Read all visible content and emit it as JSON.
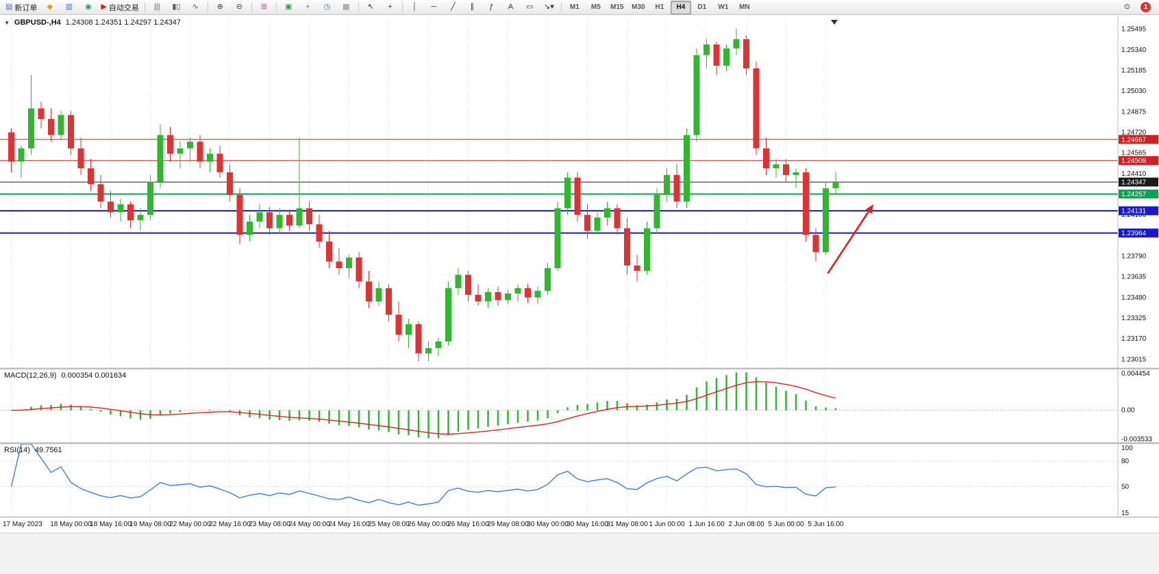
{
  "toolbar": {
    "groups": [
      [
        {
          "name": "new-order-button",
          "glyph": "▤",
          "glyph_color": "#3a6fd8",
          "label": "新订单"
        },
        {
          "name": "chart-profiles-button",
          "glyph": "◆",
          "glyph_color": "#d9a520"
        },
        {
          "name": "market-watch-button",
          "glyph": "▥",
          "glyph_color": "#3a6fd8"
        },
        {
          "name": "navigator-button",
          "glyph": "◉",
          "glyph_color": "#2e9e4f"
        },
        {
          "name": "autotrade-button",
          "glyph": "▶",
          "glyph_color": "#cc2222",
          "label": "自动交易"
        }
      ],
      [
        {
          "name": "bar-chart-button",
          "glyph": "|||",
          "glyph_color": "#555"
        },
        {
          "name": "candlestick-chart-button",
          "glyph": "▮▯",
          "glyph_color": "#555"
        },
        {
          "name": "line-chart-button",
          "glyph": "∿",
          "glyph_color": "#555"
        }
      ],
      [
        {
          "name": "zoom-in-button",
          "glyph": "⊕",
          "glyph_color": "#444"
        },
        {
          "name": "zoom-out-button",
          "glyph": "⊖",
          "glyph_color": "#444"
        }
      ],
      [
        {
          "name": "tile-windows-button",
          "glyph": "⊞",
          "glyph_color": "#b05c9e"
        }
      ],
      [
        {
          "name": "indicators-button",
          "glyph": "▣",
          "glyph_color": "#2e9e4f"
        },
        {
          "name": "add-indicator-button",
          "glyph": "+",
          "glyph_color": "#2e9e4f"
        },
        {
          "name": "periods-button",
          "glyph": "◷",
          "glyph_color": "#3a6fd8"
        },
        {
          "name": "templates-button",
          "glyph": "▦",
          "glyph_color": "#888888"
        }
      ],
      [
        {
          "name": "cursor-button",
          "glyph": "↖",
          "glyph_color": "#333"
        },
        {
          "name": "crosshair-button",
          "glyph": "+",
          "glyph_color": "#333"
        }
      ],
      [
        {
          "name": "vertical-line-button",
          "glyph": "│",
          "glyph_color": "#333"
        },
        {
          "name": "horizontal-line-button",
          "glyph": "─",
          "glyph_color": "#333"
        },
        {
          "name": "trendline-button",
          "glyph": "╱",
          "glyph_color": "#333"
        },
        {
          "name": "channel-button",
          "glyph": "∥",
          "glyph_color": "#333"
        },
        {
          "name": "fibonacci-button",
          "glyph": "ƒ",
          "glyph_color": "#333"
        },
        {
          "name": "text-button",
          "glyph": "A",
          "glyph_color": "#333"
        },
        {
          "name": "label-button",
          "glyph": "▭",
          "glyph_color": "#333"
        },
        {
          "name": "arrows-button",
          "glyph": "↘▾",
          "glyph_color": "#333"
        }
      ]
    ],
    "timeframes": [
      "M1",
      "M5",
      "M15",
      "M30",
      "H1",
      "H4",
      "D1",
      "W1",
      "MN"
    ],
    "active_timeframe": "H4",
    "right": {
      "search_glyph": "⊙",
      "badge": "1"
    }
  },
  "icons": {
    "collapse": "▼"
  },
  "chart_data": [
    {
      "type": "candlestick",
      "title": "GBPUSD-,H4",
      "ohlc": "1.24308 1.24351 1.24297 1.24347",
      "ylim": [
        1.2295,
        1.2557
      ],
      "y_ticks": [
        "1.25495",
        "1.25340",
        "1.25185",
        "1.25030",
        "1.24875",
        "1.24720",
        "1.24565",
        "1.24410",
        "1.24100",
        "1.23790",
        "1.23635",
        "1.23480",
        "1.23325",
        "1.23170",
        "1.23015"
      ],
      "up_color": "#2db82d",
      "down_color": "#e03232",
      "price_lines": [
        {
          "price": 1.24667,
          "label": "1.24667",
          "color": "#d21f1f",
          "width": 1
        },
        {
          "price": 1.24508,
          "label": "1.24508",
          "color": "#d21f1f",
          "width": 1
        },
        {
          "price": 1.24347,
          "label": "1.24347",
          "color": "#1a1a1a",
          "width": 1
        },
        {
          "price": 1.24257,
          "label": "1.24257",
          "color": "#00a651",
          "width": 2
        },
        {
          "price": 1.24131,
          "label": "1.24131",
          "color": "#1717cf",
          "width": 2
        },
        {
          "price": 1.23964,
          "label": "1.23964",
          "color": "#1717cf",
          "width": 2
        }
      ],
      "candles": [
        [
          1.2472,
          1.2475,
          1.2442,
          1.245
        ],
        [
          1.245,
          1.2462,
          1.2438,
          1.246
        ],
        [
          1.246,
          1.2515,
          1.2455,
          1.249
        ],
        [
          1.249,
          1.2495,
          1.2475,
          1.2482
        ],
        [
          1.2482,
          1.249,
          1.2465,
          1.247
        ],
        [
          1.247,
          1.2488,
          1.2466,
          1.2485
        ],
        [
          1.2485,
          1.2488,
          1.2455,
          1.246
        ],
        [
          1.246,
          1.2468,
          1.244,
          1.2445
        ],
        [
          1.2445,
          1.2452,
          1.2428,
          1.2433
        ],
        [
          1.2433,
          1.244,
          1.2415,
          1.242
        ],
        [
          1.242,
          1.2428,
          1.2408,
          1.2412
        ],
        [
          1.2412,
          1.2422,
          1.2405,
          1.2418
        ],
        [
          1.2418,
          1.242,
          1.24,
          1.2406
        ],
        [
          1.2406,
          1.2415,
          1.2398,
          1.241
        ],
        [
          1.241,
          1.244,
          1.2406,
          1.2435
        ],
        [
          1.2435,
          1.2478,
          1.243,
          1.247
        ],
        [
          1.247,
          1.2476,
          1.245,
          1.2456
        ],
        [
          1.2456,
          1.2465,
          1.2445,
          1.246
        ],
        [
          1.246,
          1.2468,
          1.245,
          1.2465
        ],
        [
          1.2465,
          1.247,
          1.2445,
          1.245
        ],
        [
          1.245,
          1.246,
          1.2442,
          1.2456
        ],
        [
          1.2456,
          1.2462,
          1.2438,
          1.2442
        ],
        [
          1.2442,
          1.2448,
          1.242,
          1.2425
        ],
        [
          1.2425,
          1.243,
          1.2388,
          1.2395
        ],
        [
          1.2395,
          1.241,
          1.239,
          1.2405
        ],
        [
          1.2405,
          1.2418,
          1.24,
          1.2412
        ],
        [
          1.2412,
          1.2416,
          1.2395,
          1.24
        ],
        [
          1.24,
          1.2415,
          1.2396,
          1.241
        ],
        [
          1.241,
          1.2414,
          1.2398,
          1.2402
        ],
        [
          1.2402,
          1.2468,
          1.24,
          1.2415
        ],
        [
          1.2415,
          1.242,
          1.2398,
          1.2403
        ],
        [
          1.2403,
          1.241,
          1.2385,
          1.239
        ],
        [
          1.239,
          1.2398,
          1.237,
          1.2375
        ],
        [
          1.2375,
          1.2385,
          1.2365,
          1.237
        ],
        [
          1.237,
          1.238,
          1.2362,
          1.2378
        ],
        [
          1.2378,
          1.2382,
          1.2355,
          1.236
        ],
        [
          1.236,
          1.2368,
          1.234,
          1.2345
        ],
        [
          1.2345,
          1.236,
          1.2342,
          1.2355
        ],
        [
          1.2355,
          1.2358,
          1.233,
          1.2335
        ],
        [
          1.2335,
          1.2345,
          1.2315,
          1.232
        ],
        [
          1.232,
          1.2332,
          1.231,
          1.2328
        ],
        [
          1.2328,
          1.233,
          1.23,
          1.2306
        ],
        [
          1.2306,
          1.2315,
          1.23,
          1.231
        ],
        [
          1.231,
          1.2318,
          1.2304,
          1.2315
        ],
        [
          1.2315,
          1.236,
          1.2312,
          1.2355
        ],
        [
          1.2355,
          1.237,
          1.235,
          1.2365
        ],
        [
          1.2365,
          1.2368,
          1.2345,
          1.235
        ],
        [
          1.235,
          1.2358,
          1.2342,
          1.2345
        ],
        [
          1.2345,
          1.2355,
          1.234,
          1.2352
        ],
        [
          1.2352,
          1.2356,
          1.2342,
          1.2346
        ],
        [
          1.2346,
          1.2354,
          1.2343,
          1.2351
        ],
        [
          1.2351,
          1.2358,
          1.2345,
          1.2355
        ],
        [
          1.2355,
          1.2358,
          1.2344,
          1.2348
        ],
        [
          1.2348,
          1.2356,
          1.2343,
          1.2353
        ],
        [
          1.2353,
          1.2374,
          1.235,
          1.237
        ],
        [
          1.237,
          1.242,
          1.2368,
          1.2415
        ],
        [
          1.2415,
          1.2442,
          1.241,
          1.2438
        ],
        [
          1.2438,
          1.2442,
          1.2405,
          1.241
        ],
        [
          1.241,
          1.2418,
          1.2392,
          1.2398
        ],
        [
          1.2398,
          1.2412,
          1.2395,
          1.2408
        ],
        [
          1.2408,
          1.242,
          1.2402,
          1.2415
        ],
        [
          1.2415,
          1.2418,
          1.2395,
          1.24
        ],
        [
          1.24,
          1.2408,
          1.2365,
          1.2372
        ],
        [
          1.2372,
          1.238,
          1.236,
          1.2368
        ],
        [
          1.2368,
          1.2405,
          1.2365,
          1.24
        ],
        [
          1.24,
          1.243,
          1.2396,
          1.2425
        ],
        [
          1.2425,
          1.2445,
          1.242,
          1.244
        ],
        [
          1.244,
          1.2448,
          1.2415,
          1.242
        ],
        [
          1.242,
          1.2475,
          1.2415,
          1.247
        ],
        [
          1.247,
          1.2535,
          1.2465,
          1.253
        ],
        [
          1.253,
          1.2542,
          1.252,
          1.2538
        ],
        [
          1.2538,
          1.254,
          1.2515,
          1.2522
        ],
        [
          1.2522,
          1.2538,
          1.2518,
          1.2535
        ],
        [
          1.2535,
          1.255,
          1.253,
          1.2542
        ],
        [
          1.2542,
          1.2545,
          1.2515,
          1.252
        ],
        [
          1.252,
          1.2525,
          1.2455,
          1.246
        ],
        [
          1.246,
          1.2468,
          1.244,
          1.2445
        ],
        [
          1.2445,
          1.2452,
          1.2438,
          1.2448
        ],
        [
          1.2448,
          1.2452,
          1.2435,
          1.244
        ],
        [
          1.244,
          1.2445,
          1.243,
          1.2442
        ],
        [
          1.2442,
          1.2445,
          1.239,
          1.2395
        ],
        [
          1.2395,
          1.24,
          1.2375,
          1.2382
        ],
        [
          1.2382,
          1.2435,
          1.238,
          1.243
        ],
        [
          1.243,
          1.2442,
          1.2425,
          1.24347
        ]
      ],
      "time_labels": [
        {
          "bar": 0,
          "label": "17 May 2023"
        },
        {
          "bar": 6,
          "label": "18 May 00:00"
        },
        {
          "bar": 10,
          "label": "18 May 16:00"
        },
        {
          "bar": 14,
          "label": "19 May 08:00"
        },
        {
          "bar": 18,
          "label": "22 May 00:00"
        },
        {
          "bar": 22,
          "label": "22 May 16:00"
        },
        {
          "bar": 26,
          "label": "23 May 08:00"
        },
        {
          "bar": 30,
          "label": "24 May 00:00"
        },
        {
          "bar": 34,
          "label": "24 May 16:00"
        },
        {
          "bar": 38,
          "label": "25 May 08:00"
        },
        {
          "bar": 42,
          "label": "26 May 00:00"
        },
        {
          "bar": 46,
          "label": "26 May 16:00"
        },
        {
          "bar": 50,
          "label": "29 May 08:00"
        },
        {
          "bar": 54,
          "label": "30 May 00:00"
        },
        {
          "bar": 58,
          "label": "30 May 16:00"
        },
        {
          "bar": 62,
          "label": "31 May 08:00"
        },
        {
          "bar": 66,
          "label": "1 Jun 00:00"
        },
        {
          "bar": 70,
          "label": "1 Jun 16:00"
        },
        {
          "bar": 74,
          "label": "2 Jun 08:00"
        },
        {
          "bar": 78,
          "label": "5 Jun 00:00"
        },
        {
          "bar": 82,
          "label": "5 Jun 16:00"
        }
      ],
      "arrow": {
        "start_bar": 82.2,
        "start_price": 1.2366,
        "end_bar": 86.8,
        "end_price": 1.2418,
        "color": "#e02020"
      }
    },
    {
      "type": "macd",
      "label": "MACD(12,26,9)",
      "values": "0.000354 0.001634",
      "params": [
        12,
        26,
        9
      ],
      "ylim": [
        -0.003533,
        0.004454
      ],
      "y_ticks": [
        "0.004454",
        "0.00",
        "-0.003533"
      ],
      "histogram_color": "#2db82d",
      "signal_color": "#e02020"
    },
    {
      "type": "rsi",
      "label": "RSI(14)",
      "value": "49.7561",
      "period": 14,
      "ylim": [
        15,
        100
      ],
      "y_ticks": [
        "100",
        "80",
        "50",
        "15"
      ],
      "levels": [
        80,
        50
      ],
      "line_color": "#3f7fcf"
    }
  ]
}
